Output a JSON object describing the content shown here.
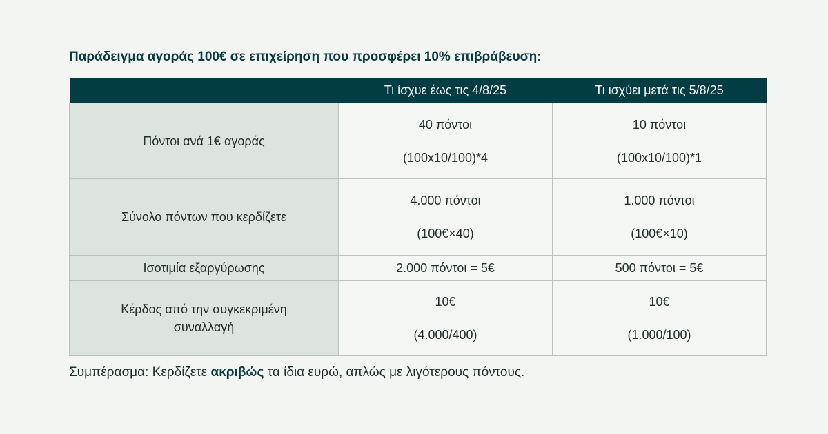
{
  "heading": "Παράδειγμα αγοράς 100€ σε επιχείρηση που προσφέρει 10% επιβράβευση:",
  "table": {
    "header": [
      "",
      "Τι ίσχυε έως τις 4/8/25",
      "Τι ισχύει μετά τις 5/8/25"
    ],
    "rows": [
      {
        "label": "Πόντοι ανά 1€ αγοράς",
        "before": {
          "main": "40 πόντοι",
          "formula": "(100x10/100)*4"
        },
        "after": {
          "main": "10 πόντοι",
          "formula": "(100x10/100)*1"
        }
      },
      {
        "label": "Σύνολο πόντων που κερδίζετε",
        "before": {
          "main": "4.000 πόντοι",
          "formula": "(100€×40)"
        },
        "after": {
          "main": "1.000 πόντοι",
          "formula": "(100€×10)"
        }
      },
      {
        "label": "Ισοτιμία εξαργύρωσης",
        "before": {
          "main": "2.000 πόντοι = 5€"
        },
        "after": {
          "main": "500 πόντοι = 5€"
        }
      },
      {
        "label": "Κέρδος από την συγκεκριμένη συναλλαγή",
        "before": {
          "main": "10€",
          "formula": "(4.000/400)"
        },
        "after": {
          "main": "10€",
          "formula": "(1.000/100)"
        }
      }
    ]
  },
  "conclusion": {
    "prefix": "Συμπέρασμα: Κερδίζετε ",
    "emphasis": "ακριβώς",
    "suffix": " τα ίδια ευρώ, απλώς με λιγότερους πόντους."
  },
  "colors": {
    "header_bg": "#033d44",
    "label_bg": "#dde3df",
    "page_bg": "#f3f5f2"
  }
}
